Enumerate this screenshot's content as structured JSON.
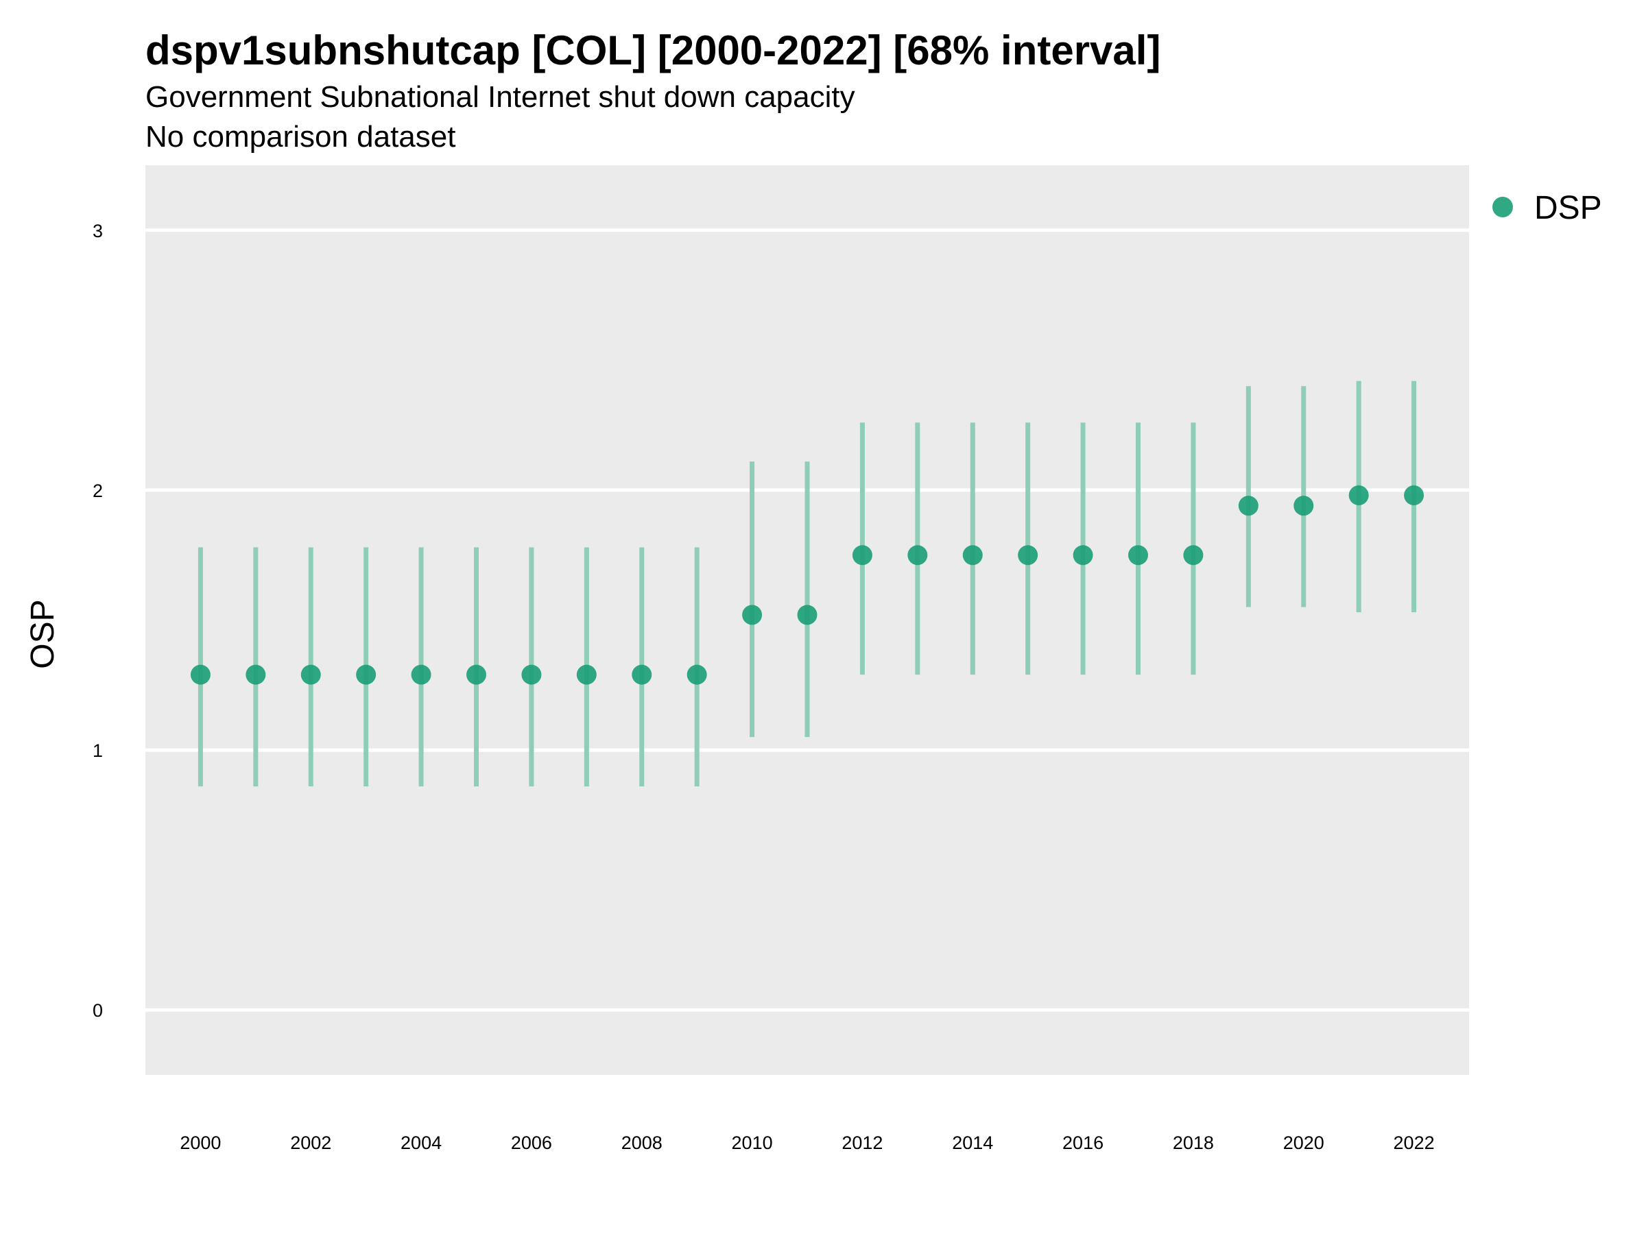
{
  "chart_data": {
    "type": "scatter",
    "title": "dspv1subnshutcap [COL] [2000-2022] [68% interval]",
    "subtitle": "Government Subnational Internet shut down capacity",
    "subtitle2": "No comparison dataset",
    "xlabel": "",
    "ylabel": "OSP",
    "ylim": [
      -0.25,
      3.25
    ],
    "yticks": [
      0,
      1,
      2,
      3
    ],
    "xlim": [
      1999,
      2023
    ],
    "xticks": [
      2000,
      2002,
      2004,
      2006,
      2008,
      2010,
      2012,
      2014,
      2016,
      2018,
      2020,
      2022
    ],
    "grid": true,
    "legend_position": "right",
    "colors": {
      "point": "#1b9e77",
      "interval": "#8fcdb7",
      "panel": "#ebebeb",
      "grid": "#ffffff"
    },
    "series": [
      {
        "name": "DSP",
        "points": [
          {
            "x": 2000,
            "y": 1.29,
            "low": 0.86,
            "high": 1.78
          },
          {
            "x": 2001,
            "y": 1.29,
            "low": 0.86,
            "high": 1.78
          },
          {
            "x": 2002,
            "y": 1.29,
            "low": 0.86,
            "high": 1.78
          },
          {
            "x": 2003,
            "y": 1.29,
            "low": 0.86,
            "high": 1.78
          },
          {
            "x": 2004,
            "y": 1.29,
            "low": 0.86,
            "high": 1.78
          },
          {
            "x": 2005,
            "y": 1.29,
            "low": 0.86,
            "high": 1.78
          },
          {
            "x": 2006,
            "y": 1.29,
            "low": 0.86,
            "high": 1.78
          },
          {
            "x": 2007,
            "y": 1.29,
            "low": 0.86,
            "high": 1.78
          },
          {
            "x": 2008,
            "y": 1.29,
            "low": 0.86,
            "high": 1.78
          },
          {
            "x": 2009,
            "y": 1.29,
            "low": 0.86,
            "high": 1.78
          },
          {
            "x": 2010,
            "y": 1.52,
            "low": 1.05,
            "high": 2.11
          },
          {
            "x": 2011,
            "y": 1.52,
            "low": 1.05,
            "high": 2.11
          },
          {
            "x": 2012,
            "y": 1.75,
            "low": 1.29,
            "high": 2.26
          },
          {
            "x": 2013,
            "y": 1.75,
            "low": 1.29,
            "high": 2.26
          },
          {
            "x": 2014,
            "y": 1.75,
            "low": 1.29,
            "high": 2.26
          },
          {
            "x": 2015,
            "y": 1.75,
            "low": 1.29,
            "high": 2.26
          },
          {
            "x": 2016,
            "y": 1.75,
            "low": 1.29,
            "high": 2.26
          },
          {
            "x": 2017,
            "y": 1.75,
            "low": 1.29,
            "high": 2.26
          },
          {
            "x": 2018,
            "y": 1.75,
            "low": 1.29,
            "high": 2.26
          },
          {
            "x": 2019,
            "y": 1.94,
            "low": 1.55,
            "high": 2.4
          },
          {
            "x": 2020,
            "y": 1.94,
            "low": 1.55,
            "high": 2.4
          },
          {
            "x": 2021,
            "y": 1.98,
            "low": 1.53,
            "high": 2.42
          },
          {
            "x": 2022,
            "y": 1.98,
            "low": 1.53,
            "high": 2.42
          }
        ]
      }
    ]
  }
}
